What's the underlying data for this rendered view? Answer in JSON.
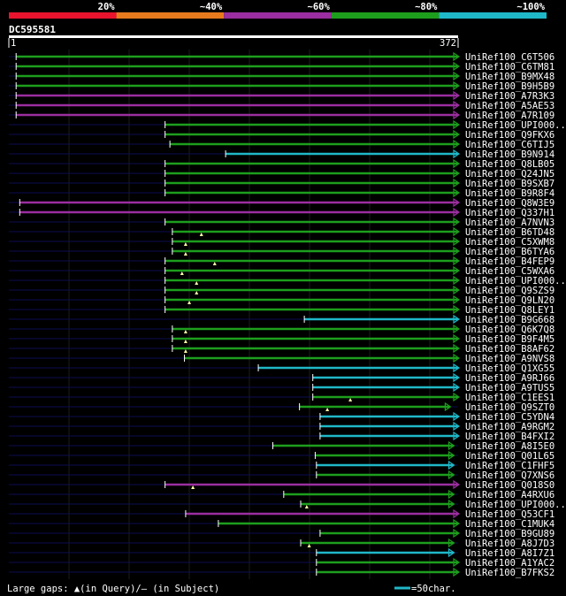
{
  "chart_data": {
    "type": "alignment",
    "title": "DC595581",
    "query_range": [
      1,
      372
    ],
    "range_labels": {
      "start": "1",
      "end": "372"
    },
    "identity_legend": [
      {
        "label": "20%",
        "color": "#e8142e"
      },
      {
        "label": "~40%",
        "color": "#e87a1e"
      },
      {
        "label": "~60%",
        "color": "#9b2ea0"
      },
      {
        "label": "~80%",
        "color": "#1d9e1d"
      },
      {
        "label": "~100%",
        "color": "#1fb8c8"
      }
    ],
    "hits": [
      {
        "name": "UniRef100_C6T506",
        "start": 7,
        "end": 372,
        "cls": 3,
        "gaps": []
      },
      {
        "name": "UniRef100_C6TM81",
        "start": 7,
        "end": 372,
        "cls": 3,
        "gaps": []
      },
      {
        "name": "UniRef100_B9MX48",
        "start": 7,
        "end": 372,
        "cls": 3,
        "gaps": []
      },
      {
        "name": "UniRef100_B9H5B9",
        "start": 7,
        "end": 372,
        "cls": 3,
        "gaps": []
      },
      {
        "name": "UniRef100_A7R3K3",
        "start": 7,
        "end": 372,
        "cls": 2,
        "gaps": []
      },
      {
        "name": "UniRef100_A5AE53",
        "start": 7,
        "end": 372,
        "cls": 2,
        "gaps": []
      },
      {
        "name": "UniRef100_A7R109",
        "start": 7,
        "end": 372,
        "cls": 2,
        "gaps": []
      },
      {
        "name": "UniRef100_UPI000..",
        "start": 130,
        "end": 372,
        "cls": 3,
        "gaps": []
      },
      {
        "name": "UniRef100_Q9FKX6",
        "start": 130,
        "end": 372,
        "cls": 3,
        "gaps": []
      },
      {
        "name": "UniRef100_C6TIJ5",
        "start": 134,
        "end": 372,
        "cls": 3,
        "gaps": []
      },
      {
        "name": "UniRef100_B9N914",
        "start": 180,
        "end": 372,
        "cls": 4,
        "gaps": []
      },
      {
        "name": "UniRef100_Q8LB05",
        "start": 130,
        "end": 372,
        "cls": 3,
        "gaps": []
      },
      {
        "name": "UniRef100_Q24JN5",
        "start": 130,
        "end": 372,
        "cls": 3,
        "gaps": []
      },
      {
        "name": "UniRef100_B9SXB7",
        "start": 130,
        "end": 372,
        "cls": 3,
        "gaps": []
      },
      {
        "name": "UniRef100_B9R8F4",
        "start": 130,
        "end": 372,
        "cls": 3,
        "gaps": []
      },
      {
        "name": "UniRef100_Q8W3E9",
        "start": 10,
        "end": 372,
        "cls": 2,
        "gaps": []
      },
      {
        "name": "UniRef100_Q337H1",
        "start": 10,
        "end": 372,
        "cls": 2,
        "gaps": []
      },
      {
        "name": "UniRef100_A7NVN3",
        "start": 130,
        "end": 372,
        "cls": 3,
        "gaps": []
      },
      {
        "name": "UniRef100_B6TD48",
        "start": 136,
        "end": 372,
        "cls": 3,
        "gaps": [
          160
        ]
      },
      {
        "name": "UniRef100_C5XWM8",
        "start": 136,
        "end": 372,
        "cls": 3,
        "gaps": [
          147
        ]
      },
      {
        "name": "UniRef100_B6TYA6",
        "start": 136,
        "end": 372,
        "cls": 3,
        "gaps": [
          147
        ]
      },
      {
        "name": "UniRef100_B4FEP9",
        "start": 130,
        "end": 372,
        "cls": 3,
        "gaps": [
          171
        ]
      },
      {
        "name": "UniRef100_C5WXA6",
        "start": 130,
        "end": 372,
        "cls": 3,
        "gaps": [
          144
        ]
      },
      {
        "name": "UniRef100_UPI000..",
        "start": 130,
        "end": 372,
        "cls": 3,
        "gaps": [
          156
        ]
      },
      {
        "name": "UniRef100_Q9SZS9",
        "start": 130,
        "end": 372,
        "cls": 3,
        "gaps": [
          156
        ]
      },
      {
        "name": "UniRef100_Q9LN20",
        "start": 130,
        "end": 372,
        "cls": 3,
        "gaps": [
          150
        ]
      },
      {
        "name": "UniRef100_Q8LEY1",
        "start": 130,
        "end": 372,
        "cls": 3,
        "gaps": []
      },
      {
        "name": "UniRef100_B9G668",
        "start": 245,
        "end": 372,
        "cls": 4,
        "gaps": []
      },
      {
        "name": "UniRef100_Q6K7Q8",
        "start": 136,
        "end": 372,
        "cls": 3,
        "gaps": [
          147
        ]
      },
      {
        "name": "UniRef100_B9F4M5",
        "start": 136,
        "end": 372,
        "cls": 3,
        "gaps": [
          147
        ]
      },
      {
        "name": "UniRef100_B8AF62",
        "start": 136,
        "end": 372,
        "cls": 3,
        "gaps": [
          147
        ]
      },
      {
        "name": "UniRef100_A9NVS8",
        "start": 146,
        "end": 372,
        "cls": 3,
        "gaps": []
      },
      {
        "name": "UniRef100_Q1XG55",
        "start": 207,
        "end": 372,
        "cls": 4,
        "gaps": []
      },
      {
        "name": "UniRef100_A9RJ66",
        "start": 252,
        "end": 372,
        "cls": 4,
        "gaps": []
      },
      {
        "name": "UniRef100_A9TUS5",
        "start": 252,
        "end": 372,
        "cls": 4,
        "gaps": []
      },
      {
        "name": "UniRef100_C1EES1",
        "start": 252,
        "end": 372,
        "cls": 3,
        "gaps": [
          283
        ]
      },
      {
        "name": "UniRef100_Q9SZT0",
        "start": 241,
        "end": 365,
        "cls": 3,
        "gaps": [
          264
        ]
      },
      {
        "name": "UniRef100_C5YDN4",
        "start": 258,
        "end": 372,
        "cls": 4,
        "gaps": []
      },
      {
        "name": "UniRef100_A9RGM2",
        "start": 258,
        "end": 372,
        "cls": 4,
        "gaps": []
      },
      {
        "name": "UniRef100_B4FXI2",
        "start": 258,
        "end": 372,
        "cls": 4,
        "gaps": []
      },
      {
        "name": "UniRef100_A8I5E0",
        "start": 219,
        "end": 368,
        "cls": 3,
        "gaps": []
      },
      {
        "name": "UniRef100_Q01L65",
        "start": 254,
        "end": 368,
        "cls": 3,
        "gaps": []
      },
      {
        "name": "UniRef100_C1FHF5",
        "start": 255,
        "end": 368,
        "cls": 4,
        "gaps": []
      },
      {
        "name": "UniRef100_Q7XNS6",
        "start": 255,
        "end": 368,
        "cls": 3,
        "gaps": []
      },
      {
        "name": "UniRef100_Q018S0",
        "start": 130,
        "end": 372,
        "cls": 2,
        "gaps": [
          153
        ]
      },
      {
        "name": "UniRef100_A4RXU6",
        "start": 228,
        "end": 368,
        "cls": 3,
        "gaps": []
      },
      {
        "name": "UniRef100_UPI000..",
        "start": 242,
        "end": 368,
        "cls": 3,
        "gaps": [
          247
        ]
      },
      {
        "name": "UniRef100_Q53CF1",
        "start": 147,
        "end": 372,
        "cls": 2,
        "gaps": []
      },
      {
        "name": "UniRef100_C1MUK4",
        "start": 174,
        "end": 372,
        "cls": 3,
        "gaps": []
      },
      {
        "name": "UniRef100_B9GU89",
        "start": 258,
        "end": 372,
        "cls": 3,
        "gaps": []
      },
      {
        "name": "UniRef100_A8J7D3",
        "start": 242,
        "end": 368,
        "cls": 3,
        "gaps": [
          249
        ]
      },
      {
        "name": "UniRef100_A8I7Z1",
        "start": 255,
        "end": 368,
        "cls": 4,
        "gaps": []
      },
      {
        "name": "UniRef100_A1YAC2",
        "start": 255,
        "end": 372,
        "cls": 3,
        "gaps": []
      },
      {
        "name": "UniRef100_B7FKS2",
        "start": 255,
        "end": 372,
        "cls": 3,
        "gaps": []
      }
    ],
    "footer_text": "Large gaps: ▲(in Query)/— (in Subject)",
    "scale_label": "=50char."
  }
}
